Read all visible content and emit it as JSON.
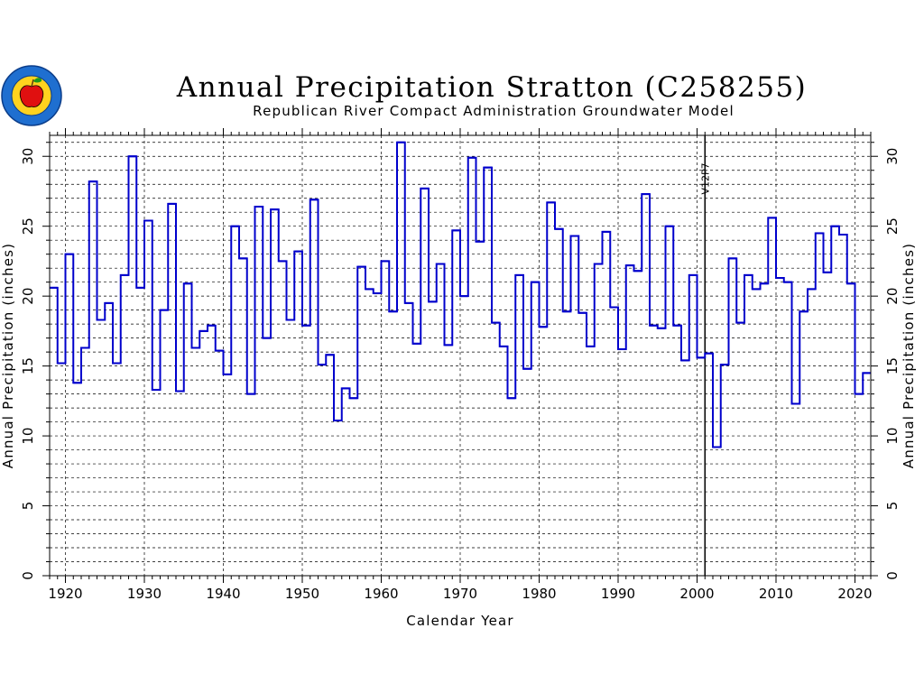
{
  "chart_data": {
    "type": "line",
    "step": true,
    "title": "Annual Precipitation Stratton (C258255)",
    "subtitle": "Republican River Compact Administration Groundwater Model",
    "xlabel": "Calendar Year",
    "ylabel": "Annual Precipitation (inches)",
    "xlim": [
      1918,
      2022
    ],
    "ylim": [
      0,
      31.5
    ],
    "x_ticks": [
      1920,
      1930,
      1940,
      1950,
      1960,
      1970,
      1980,
      1990,
      2000,
      2010,
      2020
    ],
    "y_ticks": [
      0,
      5,
      10,
      15,
      20,
      25,
      30
    ],
    "grid": true,
    "annotation": {
      "label": "V12P7",
      "x": 2001
    },
    "series_color": "#0000cc",
    "series": [
      {
        "x": [
          1918,
          1919,
          1920,
          1921,
          1922,
          1923,
          1924,
          1925,
          1926,
          1927,
          1928,
          1929,
          1930,
          1931,
          1932,
          1933,
          1934,
          1935,
          1936,
          1937,
          1938,
          1939,
          1940,
          1941,
          1942,
          1943,
          1944,
          1945,
          1946,
          1947,
          1948,
          1949,
          1950,
          1951,
          1952,
          1953,
          1954,
          1955,
          1956,
          1957,
          1958,
          1959,
          1960,
          1961,
          1962,
          1963,
          1964,
          1965,
          1966,
          1967,
          1968,
          1969,
          1970,
          1971,
          1972,
          1973,
          1974,
          1975,
          1976,
          1977,
          1978,
          1979,
          1980,
          1981,
          1982,
          1983,
          1984,
          1985,
          1986,
          1987,
          1988,
          1989,
          1990,
          1991,
          1992,
          1993,
          1994,
          1995,
          1996,
          1997,
          1998,
          1999,
          2000,
          2001,
          2002,
          2003,
          2004,
          2005,
          2006,
          2007,
          2008,
          2009,
          2010,
          2011,
          2012,
          2013,
          2014,
          2015,
          2016,
          2017,
          2018,
          2019,
          2020,
          2021
        ],
        "values": [
          20.6,
          15.2,
          23.0,
          13.8,
          16.3,
          28.2,
          18.3,
          19.5,
          15.2,
          21.5,
          30.0,
          20.6,
          25.4,
          13.3,
          19.0,
          26.6,
          13.2,
          20.9,
          16.3,
          17.5,
          17.9,
          16.1,
          14.4,
          25.0,
          22.7,
          13.0,
          26.4,
          17.0,
          26.2,
          22.5,
          18.3,
          23.2,
          17.9,
          26.9,
          15.1,
          15.8,
          11.1,
          13.4,
          12.7,
          22.1,
          20.5,
          20.2,
          22.5,
          18.9,
          31.0,
          19.5,
          16.6,
          27.7,
          19.6,
          22.3,
          16.5,
          24.7,
          20.0,
          29.9,
          23.9,
          29.2,
          18.1,
          16.4,
          12.7,
          21.5,
          14.8,
          21.0,
          17.8,
          26.7,
          24.8,
          18.9,
          24.3,
          18.8,
          16.4,
          22.3,
          24.6,
          19.2,
          16.2,
          22.2,
          21.8,
          27.3,
          17.9,
          17.7,
          25.0,
          17.9,
          15.4,
          21.5,
          15.6,
          15.9,
          9.2,
          15.1,
          22.7,
          18.1,
          21.5,
          20.5,
          20.9,
          25.6,
          21.3,
          21.0,
          12.3,
          18.9,
          20.5,
          24.5,
          21.7,
          25.0,
          24.4,
          20.9,
          13.0,
          14.5
        ]
      }
    ]
  }
}
